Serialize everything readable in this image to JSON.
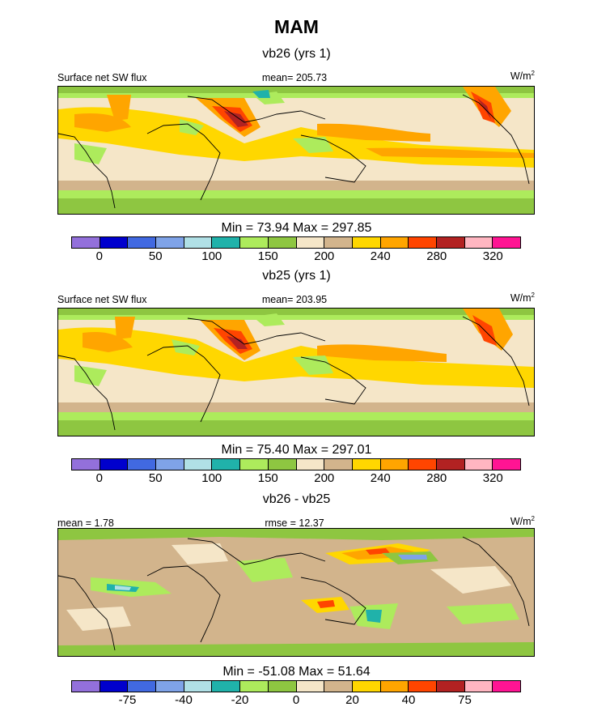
{
  "title": "MAM",
  "units_base": "W/m",
  "units_sup": "2",
  "colors": {
    "palette": [
      "#9370DB",
      "#0000CD",
      "#4169E1",
      "#7FA3E8",
      "#B0E0E6",
      "#20B2AA",
      "#ADEB5C",
      "#8EC641",
      "#F5E6C8",
      "#D2B48C",
      "#FFD700",
      "#FFA500",
      "#FF4500",
      "#B22222",
      "#FFB6C1",
      "#FF1493"
    ],
    "ocean_abs": "#F5E6C8",
    "ocean_diff": "#D2B48C",
    "coast": "#000000"
  },
  "panels": [
    {
      "title": "vb26 (yrs 1)",
      "left_label": "Surface net SW flux",
      "center_label": "mean= 205.73",
      "stats": "Min =  73.94 Max = 297.85",
      "ticks": [
        "0",
        "50",
        "100",
        "150",
        "200",
        "240",
        "280",
        "320"
      ]
    },
    {
      "title": "vb25 (yrs 1)",
      "left_label": "Surface net SW flux",
      "center_label": "mean= 203.95",
      "stats": "Min =  75.40 Max = 297.01",
      "ticks": [
        "0",
        "50",
        "100",
        "150",
        "200",
        "240",
        "280",
        "320"
      ]
    },
    {
      "title": "vb26 - vb25",
      "left_label": "mean =   1.78",
      "center_label": "rmse =  12.37",
      "stats": "Min = -51.08 Max =  51.64",
      "ticks": [
        "-75",
        "-40",
        "-20",
        "0",
        "20",
        "40",
        "75"
      ]
    }
  ],
  "chart_data": [
    {
      "type": "heatmap",
      "title": "vb26 (yrs 1)",
      "variable": "Surface net SW flux",
      "units": "W/m2",
      "mean": 205.73,
      "min": 73.94,
      "max": 297.85,
      "colorbar_ticks": [
        0,
        50,
        100,
        150,
        200,
        240,
        280,
        320
      ]
    },
    {
      "type": "heatmap",
      "title": "vb25 (yrs 1)",
      "variable": "Surface net SW flux",
      "units": "W/m2",
      "mean": 203.95,
      "min": 75.4,
      "max": 297.01,
      "colorbar_ticks": [
        0,
        50,
        100,
        150,
        200,
        240,
        280,
        320
      ]
    },
    {
      "type": "heatmap",
      "title": "vb26 - vb25",
      "units": "W/m2",
      "mean": 1.78,
      "rmse": 12.37,
      "min": -51.08,
      "max": 51.64,
      "colorbar_ticks": [
        -75,
        -40,
        -20,
        0,
        20,
        40,
        75
      ]
    }
  ]
}
